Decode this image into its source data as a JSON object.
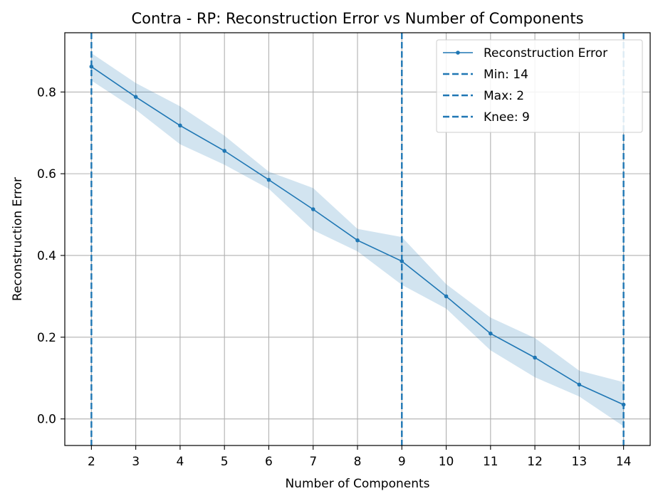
{
  "chart_data": {
    "type": "line",
    "title": "Contra - RP: Reconstruction Error vs Number of Components",
    "xlabel": "Number of Components",
    "ylabel": "Reconstruction Error",
    "x": [
      2,
      3,
      4,
      5,
      6,
      7,
      8,
      9,
      10,
      11,
      12,
      13,
      14
    ],
    "xlim": [
      1.4,
      14.6
    ],
    "ylim": [
      -0.065,
      0.945
    ],
    "yticks": [
      0.0,
      0.2,
      0.4,
      0.6,
      0.8
    ],
    "ytick_labels": [
      "0.0",
      "0.2",
      "0.4",
      "0.6",
      "0.8"
    ],
    "xtick_labels": [
      "2",
      "3",
      "4",
      "5",
      "6",
      "7",
      "8",
      "9",
      "10",
      "11",
      "12",
      "13",
      "14"
    ],
    "grid": true,
    "legend_position": "top-right",
    "series": [
      {
        "name": "Reconstruction Error",
        "color": "#1f77b4",
        "values": [
          0.862,
          0.788,
          0.718,
          0.656,
          0.585,
          0.513,
          0.437,
          0.386,
          0.3,
          0.209,
          0.15,
          0.084,
          0.035
        ],
        "band_upper": [
          0.895,
          0.822,
          0.765,
          0.693,
          0.605,
          0.565,
          0.465,
          0.445,
          0.33,
          0.248,
          0.198,
          0.118,
          0.09
        ],
        "band_lower": [
          0.828,
          0.757,
          0.672,
          0.622,
          0.563,
          0.462,
          0.41,
          0.328,
          0.27,
          0.168,
          0.102,
          0.055,
          -0.018
        ]
      }
    ],
    "vlines": [
      {
        "label": "Min: 14",
        "x": 14,
        "color": "#1f77b4"
      },
      {
        "label": "Max: 2",
        "x": 2,
        "color": "#1f77b4"
      },
      {
        "label": "Knee: 9",
        "x": 9,
        "color": "#1f77b4"
      }
    ]
  }
}
